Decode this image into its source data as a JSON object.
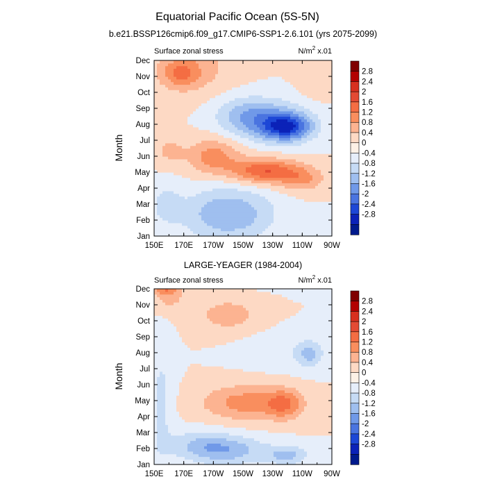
{
  "figure": {
    "title": "Equatorial Pacific Ocean (5S-5N)"
  },
  "colorbar": {
    "labels": [
      "2.8",
      "2.4",
      "2",
      "1.6",
      "1.2",
      "0.8",
      "0.4",
      "0",
      "-0.4",
      "-0.8",
      "-1.2",
      "-1.6",
      "-2",
      "-2.4",
      "-2.8"
    ],
    "colors": [
      "#7f0000",
      "#b30000",
      "#d7301f",
      "#e34a33",
      "#f46d43",
      "#f98e5e",
      "#fcb391",
      "#fdd9c4",
      "#fdf1e6",
      "#e6eefa",
      "#c6dbf5",
      "#9fbfef",
      "#7099e8",
      "#4a74e0",
      "#1d47d6",
      "#0b22b8",
      "#001a8c",
      "#000a60"
    ]
  },
  "chart_data": [
    {
      "type": "heatmap",
      "subtitle": "b.e21.BSSP126cmip6.f09_g17.CMIP6-SSP1-2.6.101 (yrs 2075-2099)",
      "left_label": "Surface zonal stress",
      "right_label": "N/m",
      "right_label_sup": "2",
      "right_label_suffix": " x.01",
      "ylabel": "Month",
      "xticks": [
        "150E",
        "170E",
        "170W",
        "150W",
        "130W",
        "110W",
        "90W"
      ],
      "yticks": [
        "Jan",
        "Feb",
        "Mar",
        "Apr",
        "May",
        "Jun",
        "Jul",
        "Aug",
        "Sep",
        "Oct",
        "Nov",
        "Dec"
      ],
      "xlim": [
        150,
        270
      ],
      "units": "N/m^2 x.01",
      "features": [
        {
          "lon": 200,
          "month": 1.4,
          "value": -1.2,
          "slon": 30,
          "smon": 1.6
        },
        {
          "lon": 158,
          "month": 2.0,
          "value": -0.5,
          "slon": 10,
          "smon": 1.2
        },
        {
          "lon": 225,
          "month": 4.1,
          "value": 1.6,
          "slon": 22,
          "smon": 0.75
        },
        {
          "lon": 250,
          "month": 3.6,
          "value": 0.8,
          "slon": 15,
          "smon": 0.8
        },
        {
          "lon": 190,
          "month": 5.0,
          "value": 1.0,
          "slon": 18,
          "smon": 1.1
        },
        {
          "lon": 160,
          "month": 5.4,
          "value": 0.5,
          "slon": 10,
          "smon": 0.8
        },
        {
          "lon": 240,
          "month": 6.8,
          "value": -1.7,
          "slon": 16,
          "smon": 0.8
        },
        {
          "lon": 232,
          "month": 7.2,
          "value": -1.2,
          "slon": 24,
          "smon": 1.2
        },
        {
          "lon": 210,
          "month": 7.6,
          "value": -0.8,
          "slon": 20,
          "smon": 1.2
        },
        {
          "lon": 168,
          "month": 10.2,
          "value": 0.9,
          "slon": 12,
          "smon": 0.8
        },
        {
          "lon": 175,
          "month": 10.6,
          "value": 0.6,
          "slon": 28,
          "smon": 1.8
        },
        {
          "lon": 260,
          "month": 10.0,
          "value": 0.3,
          "slon": 12,
          "smon": 1.5
        }
      ]
    },
    {
      "type": "heatmap",
      "subtitle": "LARGE-YEAGER (1984-2004)",
      "left_label": "Surface zonal stress",
      "right_label": "N/m",
      "right_label_sup": "2",
      "right_label_suffix": " x.01",
      "ylabel": "Month",
      "xticks": [
        "150E",
        "170E",
        "170W",
        "150W",
        "130W",
        "110W",
        "90W"
      ],
      "yticks": [
        "Jan",
        "Feb",
        "Mar",
        "Apr",
        "May",
        "Jun",
        "Jul",
        "Aug",
        "Sep",
        "Oct",
        "Nov",
        "Dec"
      ],
      "xlim": [
        150,
        270
      ],
      "units": "N/m^2 x.01",
      "features": [
        {
          "lon": 156,
          "month": 11.7,
          "value": 1.7,
          "slon": 8,
          "smon": 0.7
        },
        {
          "lon": 160,
          "month": 11.0,
          "value": 0.8,
          "slon": 10,
          "smon": 1.2
        },
        {
          "lon": 212,
          "month": 3.9,
          "value": 1.0,
          "slon": 30,
          "smon": 1.1
        },
        {
          "lon": 238,
          "month": 3.8,
          "value": 1.0,
          "slon": 12,
          "smon": 0.9
        },
        {
          "lon": 200,
          "month": 9.4,
          "value": 0.6,
          "slon": 22,
          "smon": 1.1
        },
        {
          "lon": 230,
          "month": 11.7,
          "value": -0.8,
          "slon": 15,
          "smon": 0.5
        },
        {
          "lon": 255,
          "month": 6.9,
          "value": -0.8,
          "slon": 8,
          "smon": 0.8
        },
        {
          "lon": 250,
          "month": 11.5,
          "value": -0.6,
          "slon": 10,
          "smon": 0.6
        },
        {
          "lon": 240,
          "month": 7.2,
          "value": -0.3,
          "slon": 30,
          "smon": 1.2
        },
        {
          "lon": 200,
          "month": 0.9,
          "value": -1.0,
          "slon": 26,
          "smon": 0.9
        },
        {
          "lon": 180,
          "month": 1.3,
          "value": -0.6,
          "slon": 22,
          "smon": 0.9
        },
        {
          "lon": 240,
          "month": 0.6,
          "value": -0.9,
          "slon": 14,
          "smon": 0.6
        },
        {
          "lon": 155,
          "month": 4.0,
          "value": -0.5,
          "slon": 8,
          "smon": 4.0
        }
      ]
    }
  ]
}
